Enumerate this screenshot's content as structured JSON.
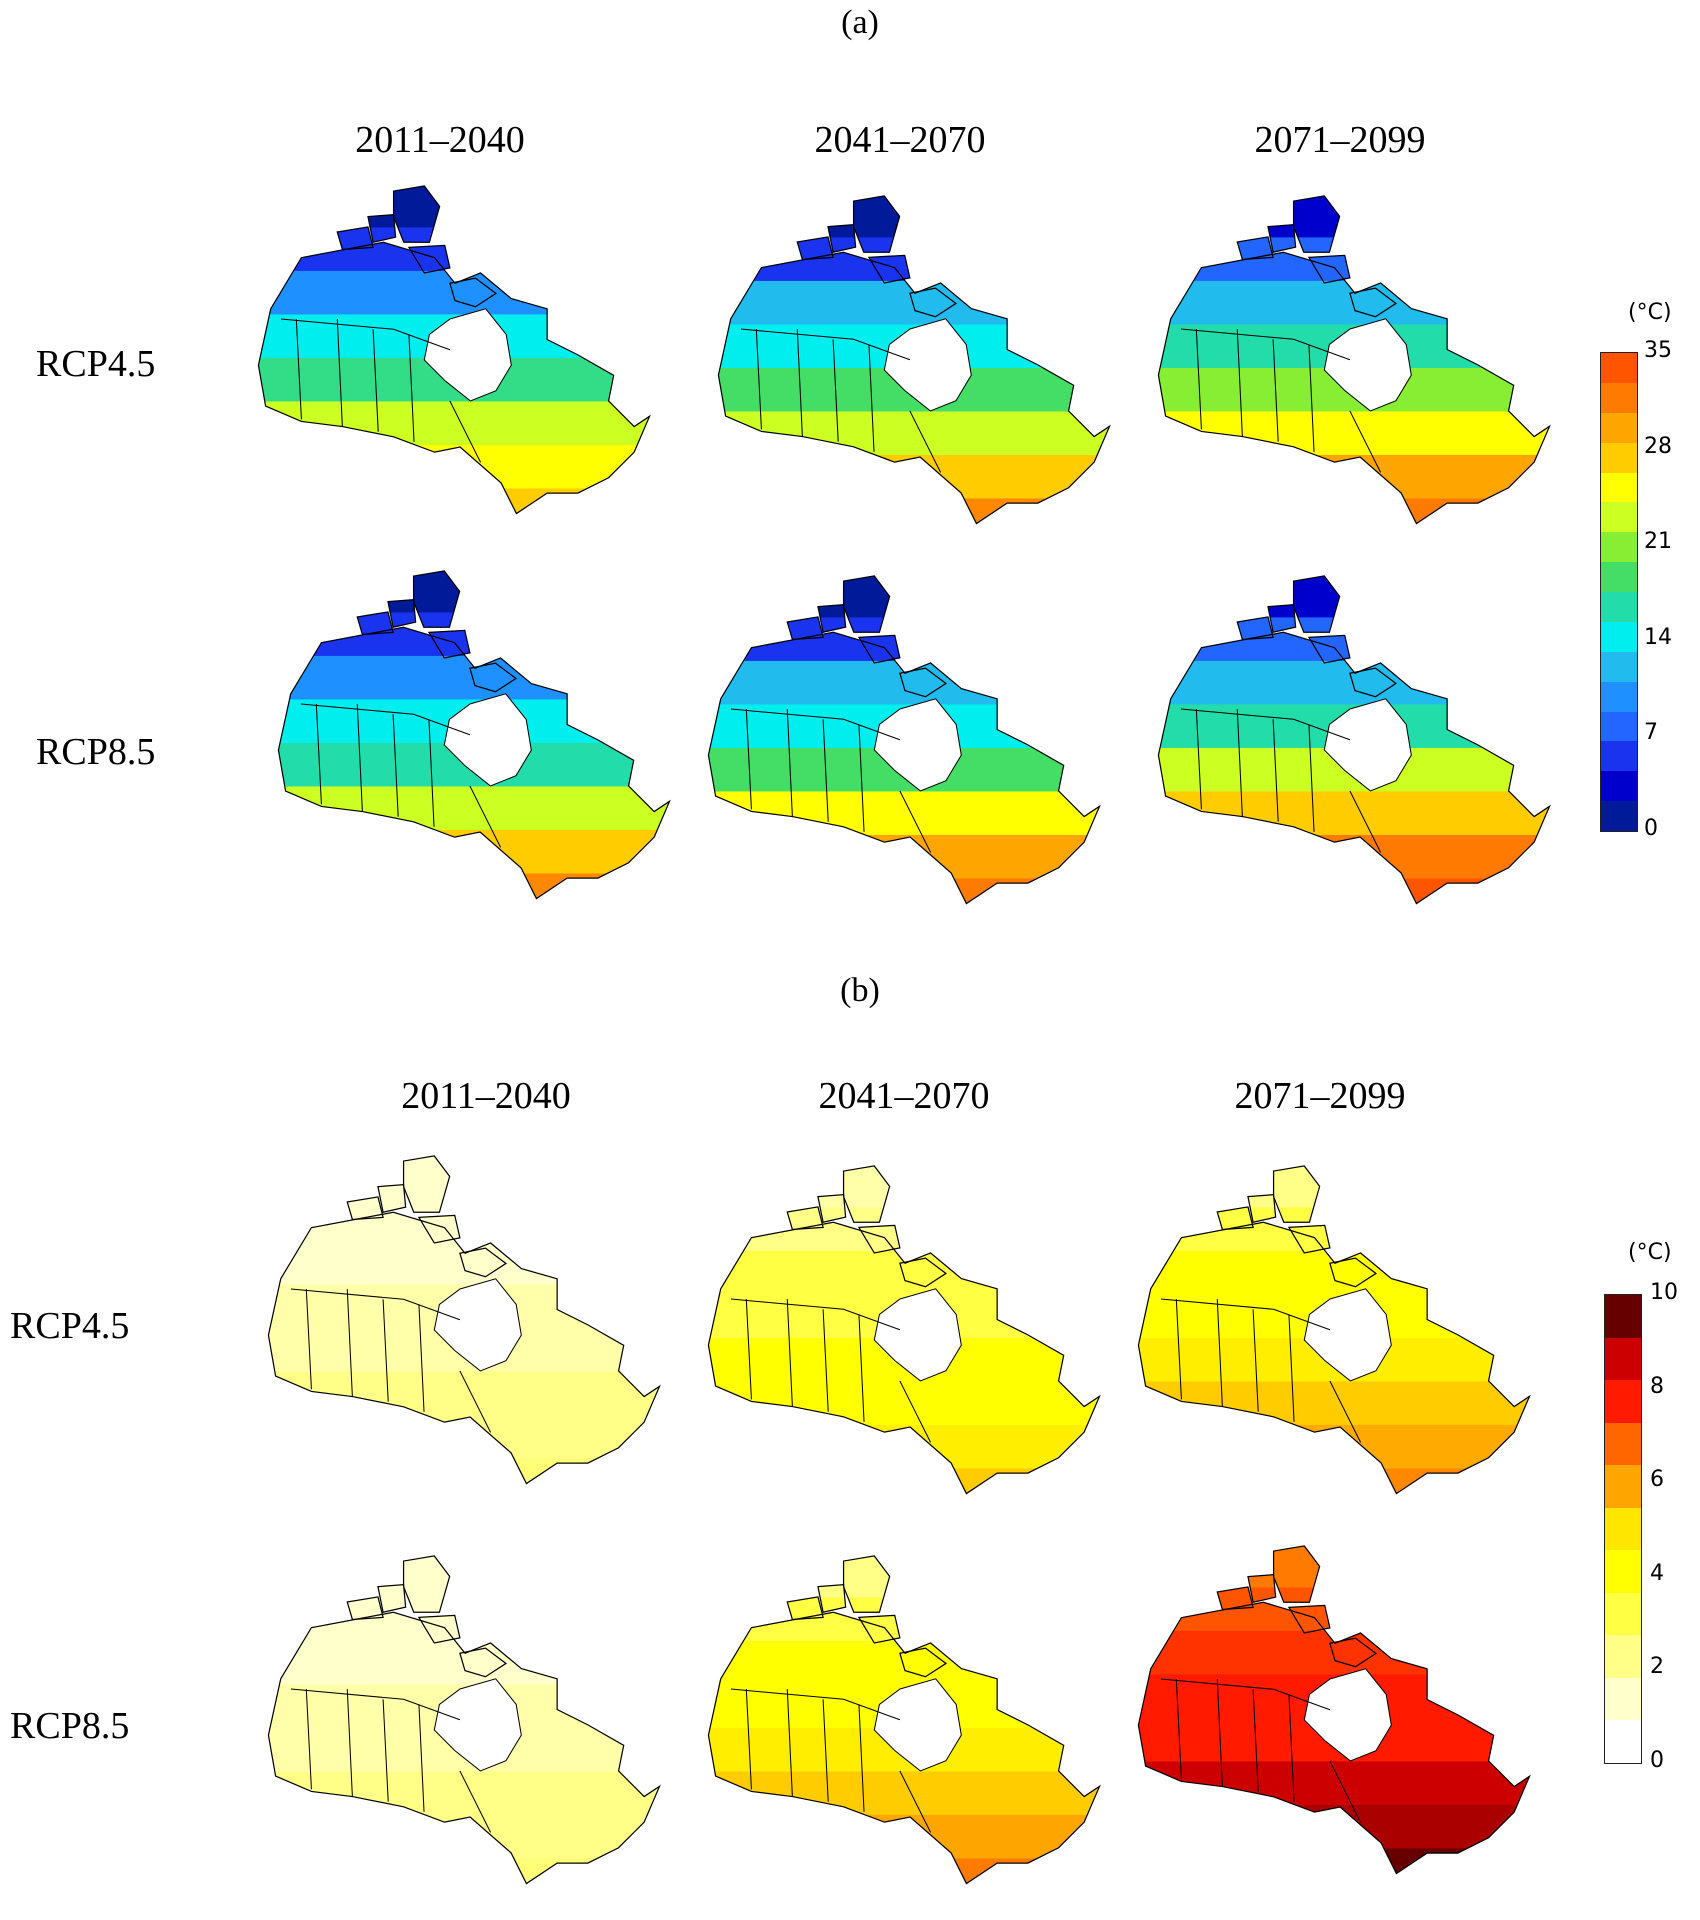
{
  "panels": [
    {
      "label": "(a)",
      "periods": [
        "2011–2040",
        "2041–2070",
        "2071–2099"
      ],
      "scenarios": [
        "RCP4.5",
        "RCP8.5"
      ],
      "legend": {
        "unit": "(°C)",
        "ticks": [
          "0",
          "7",
          "14",
          "21",
          "28",
          "35"
        ],
        "colors": [
          "#001a99",
          "#0000cc",
          "#1a33ee",
          "#2266ff",
          "#1e90ff",
          "#22bbee",
          "#00eeee",
          "#22ddaa",
          "#44dd66",
          "#88ee33",
          "#ccff22",
          "#ffff00",
          "#ffcc00",
          "#ffa500",
          "#ff7a00",
          "#ff5500"
        ]
      },
      "maps": [
        {
          "scenario": "RCP4.5",
          "period": "2011–2040",
          "palette": [
            "#001a99",
            "#1a33ee",
            "#1e90ff",
            "#00eeee",
            "#33dd88",
            "#ccff22",
            "#ffff00",
            "#ffcc00"
          ]
        },
        {
          "scenario": "RCP4.5",
          "period": "2041–2070",
          "palette": [
            "#001a99",
            "#1a33ee",
            "#22bbee",
            "#00eeee",
            "#44dd66",
            "#ccff22",
            "#ffcc00",
            "#ff8800"
          ]
        },
        {
          "scenario": "RCP4.5",
          "period": "2071–2099",
          "palette": [
            "#0000cc",
            "#2266ff",
            "#22bbee",
            "#22ddaa",
            "#88ee33",
            "#ffff00",
            "#ffa500",
            "#ff7a00"
          ]
        },
        {
          "scenario": "RCP8.5",
          "period": "2011–2040",
          "palette": [
            "#001a99",
            "#1a33ee",
            "#1e90ff",
            "#00eeee",
            "#22ddaa",
            "#ccff22",
            "#ffcc00",
            "#ff8800"
          ]
        },
        {
          "scenario": "RCP8.5",
          "period": "2041–2070",
          "palette": [
            "#001a99",
            "#1a33ee",
            "#22bbee",
            "#00eeee",
            "#44dd66",
            "#ffff00",
            "#ffa500",
            "#ff7a00"
          ]
        },
        {
          "scenario": "RCP8.5",
          "period": "2071–2099",
          "palette": [
            "#0000cc",
            "#2266ff",
            "#22bbee",
            "#22ddaa",
            "#ccff22",
            "#ffcc00",
            "#ff7a00",
            "#ff5500"
          ]
        }
      ]
    },
    {
      "label": "(b)",
      "periods": [
        "2011–2040",
        "2041–2070",
        "2071–2099"
      ],
      "scenarios": [
        "RCP4.5",
        "RCP8.5"
      ],
      "legend": {
        "unit": "(°C)",
        "ticks": [
          "0",
          "2",
          "4",
          "6",
          "8",
          "10"
        ],
        "colors": [
          "#ffffff",
          "#ffffcc",
          "#ffff88",
          "#ffff44",
          "#ffff00",
          "#ffe600",
          "#ffa500",
          "#ff6600",
          "#ff1a00",
          "#cc0000",
          "#660000"
        ]
      },
      "maps": [
        {
          "scenario": "RCP4.5",
          "period": "2011–2040",
          "palette": [
            "#ffffcc",
            "#ffffcc",
            "#ffffcc",
            "#ffffaa",
            "#ffffaa",
            "#ffff88",
            "#ffff88",
            "#ffff77"
          ]
        },
        {
          "scenario": "RCP4.5",
          "period": "2041–2070",
          "palette": [
            "#ffffaa",
            "#ffff88",
            "#ffff44",
            "#ffff44",
            "#ffff00",
            "#ffff00",
            "#ffee00",
            "#ffcc00"
          ]
        },
        {
          "scenario": "RCP4.5",
          "period": "2071–2099",
          "palette": [
            "#ffff88",
            "#ffff44",
            "#ffff00",
            "#ffff00",
            "#ffee00",
            "#ffcc00",
            "#ffaa00",
            "#ff8800"
          ]
        },
        {
          "scenario": "RCP8.5",
          "period": "2011–2040",
          "palette": [
            "#ffffcc",
            "#ffffcc",
            "#ffffcc",
            "#ffffaa",
            "#ffffaa",
            "#ffff88",
            "#ffff88",
            "#ffff77"
          ]
        },
        {
          "scenario": "RCP8.5",
          "period": "2041–2070",
          "palette": [
            "#ffff88",
            "#ffff44",
            "#ffff00",
            "#ffff00",
            "#ffee00",
            "#ffcc00",
            "#ffa500",
            "#ff7a00"
          ]
        },
        {
          "scenario": "RCP8.5",
          "period": "2071–2099",
          "palette": [
            "#ff7a00",
            "#ff5500",
            "#ff3300",
            "#ff1a00",
            "#ff1a00",
            "#cc0000",
            "#aa0000",
            "#660000"
          ]
        }
      ]
    }
  ]
}
